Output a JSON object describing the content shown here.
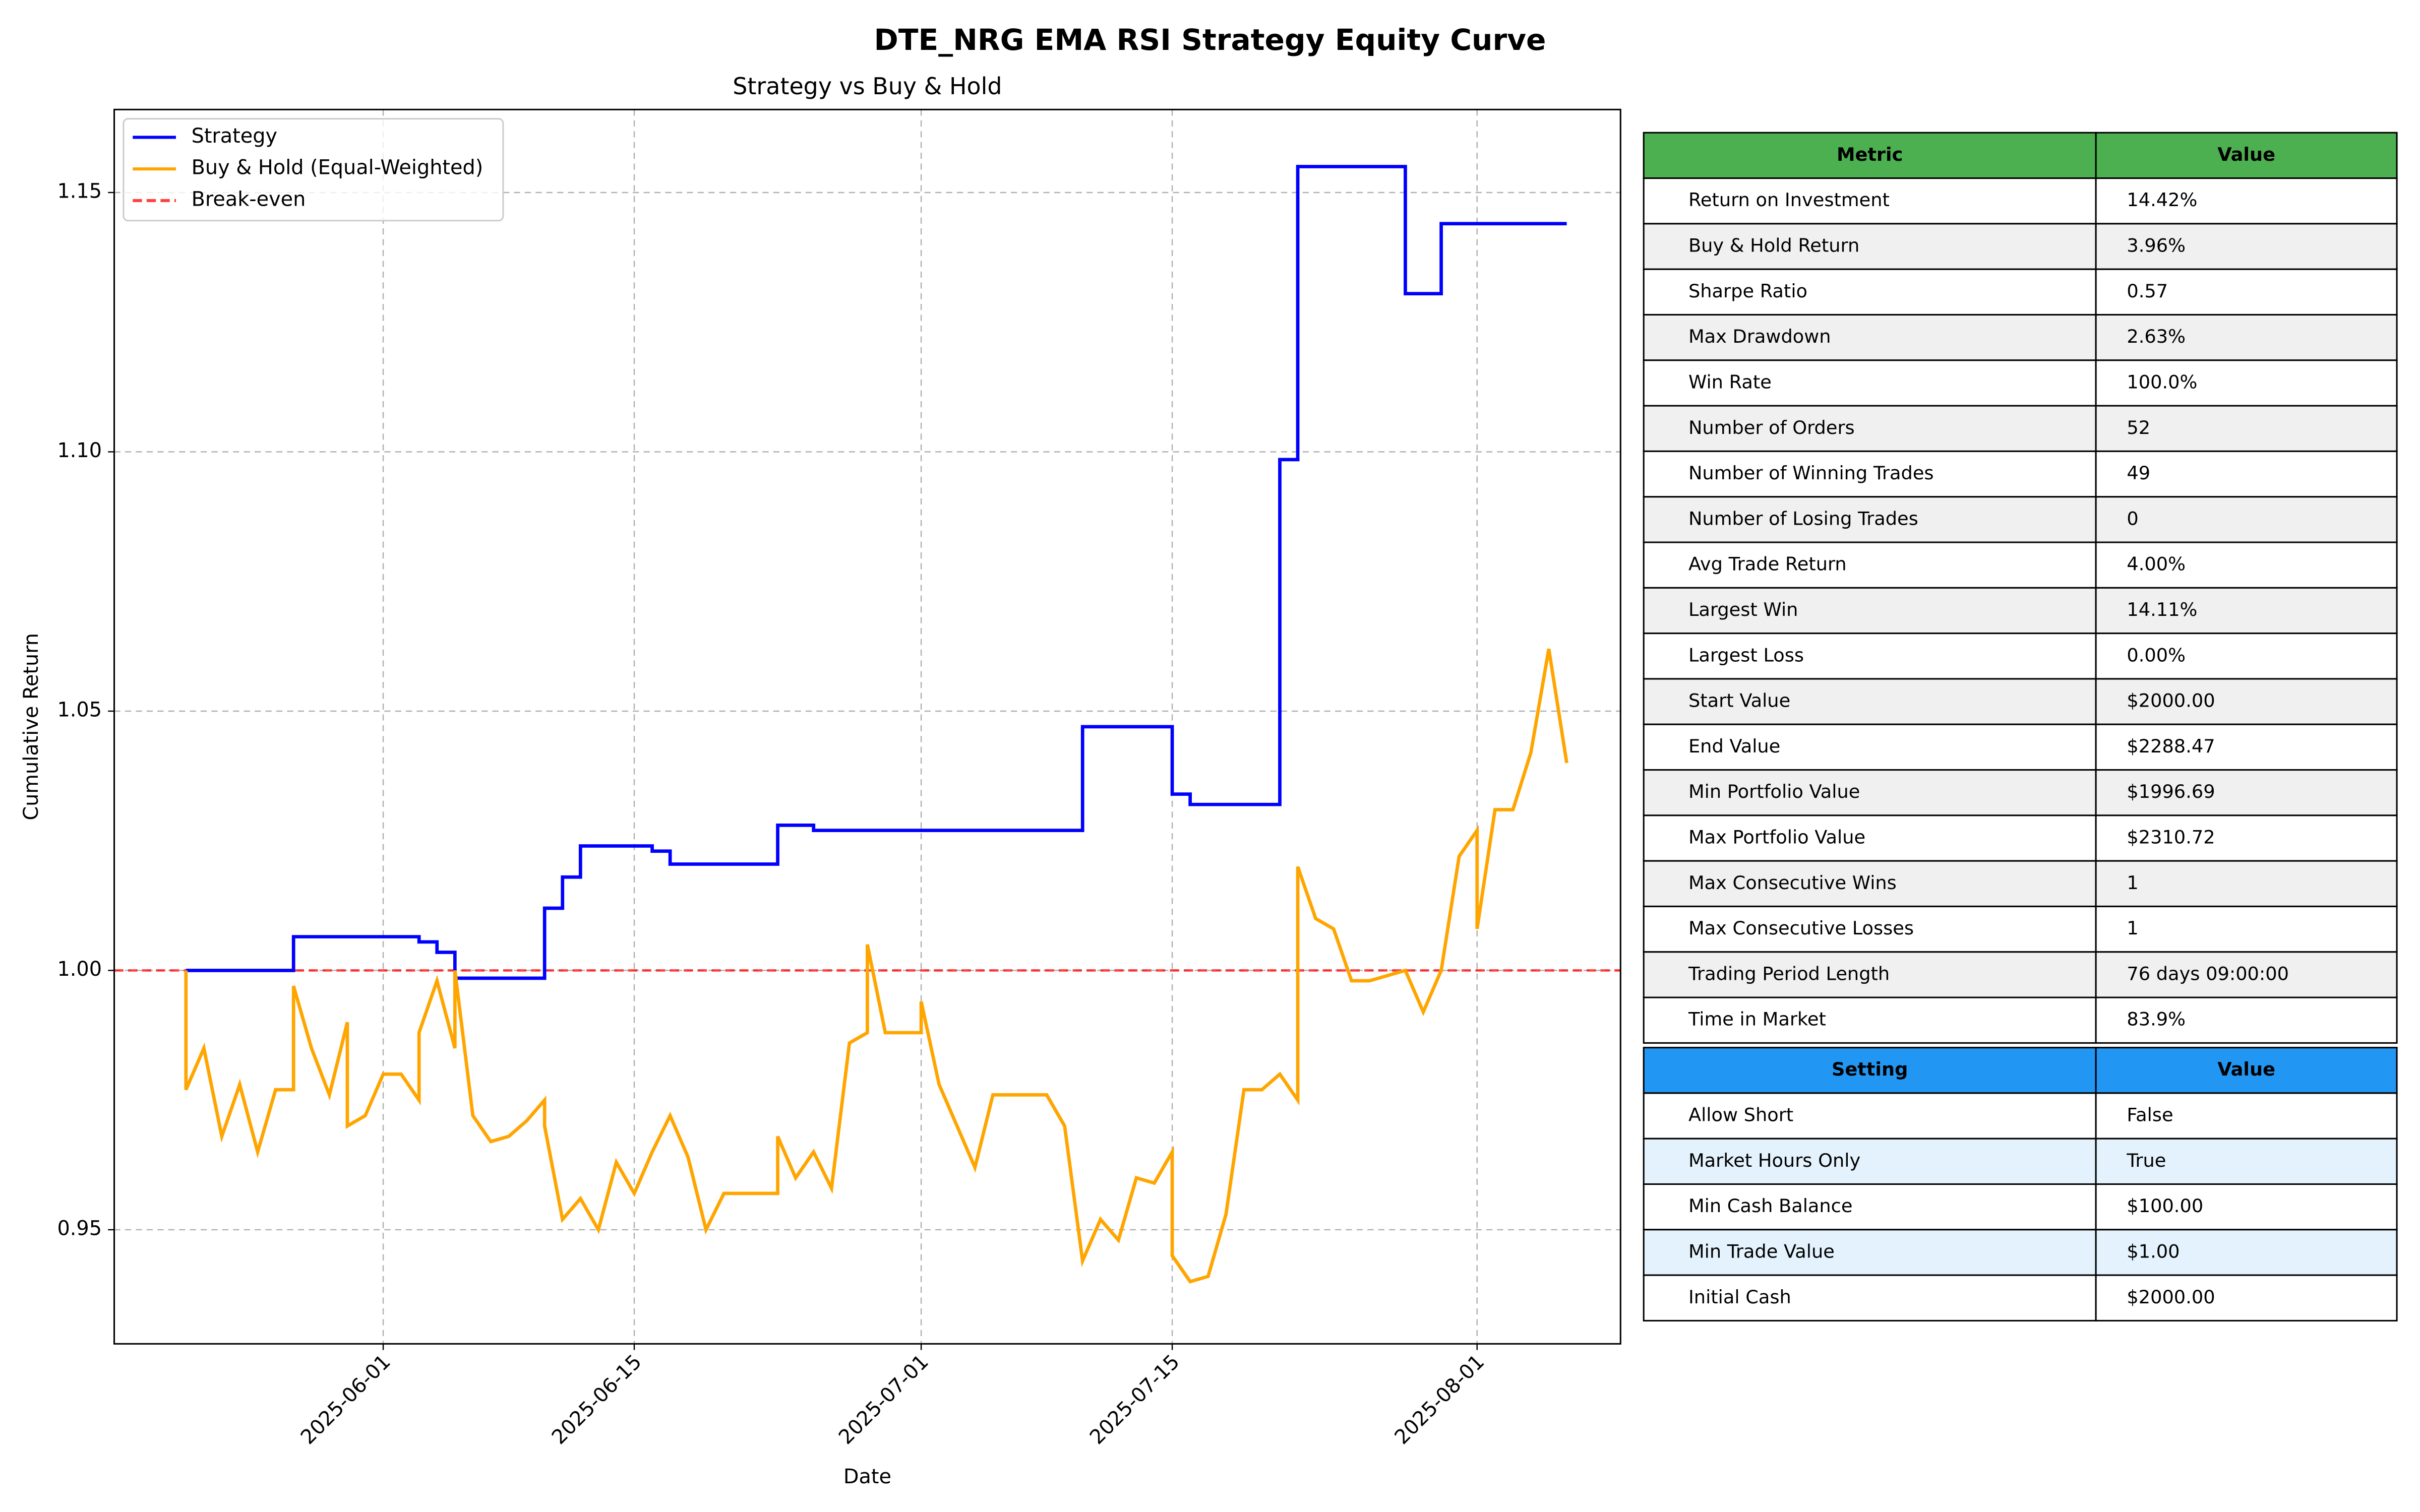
{
  "chart_data": {
    "type": "line",
    "title": "DTE_NRG EMA RSI Strategy Equity Curve",
    "subtitle": "Strategy vs Buy & Hold",
    "xlabel": "Date",
    "ylabel": "Cumulative Return",
    "xlim": [
      "2025-05-17",
      "2025-08-09"
    ],
    "xticks": [
      "2025-06-01",
      "2025-06-15",
      "2025-07-01",
      "2025-07-15",
      "2025-08-01"
    ],
    "ylim": [
      0.928,
      1.166
    ],
    "yticks": [
      0.95,
      {
        "value": 1.0,
        "label": "1.00"
      },
      1.05,
      {
        "value": 1.1,
        "label": "1.10"
      },
      1.15
    ],
    "grid": true,
    "legend": "upper left",
    "series": [
      {
        "name": "Strategy",
        "color": "#0000ff",
        "x": [
          "2025-05-21",
          "2025-05-27",
          "2025-05-27",
          "2025-06-03",
          "2025-06-03",
          "2025-06-04",
          "2025-06-04",
          "2025-06-05",
          "2025-06-05",
          "2025-06-10",
          "2025-06-10",
          "2025-06-11",
          "2025-06-11",
          "2025-06-12",
          "2025-06-12",
          "2025-06-16",
          "2025-06-16",
          "2025-06-17",
          "2025-06-17",
          "2025-06-23",
          "2025-06-23",
          "2025-06-25",
          "2025-06-25",
          "2025-07-10",
          "2025-07-10",
          "2025-07-15",
          "2025-07-15",
          "2025-07-16",
          "2025-07-16",
          "2025-07-21",
          "2025-07-21",
          "2025-07-22",
          "2025-07-22",
          "2025-07-28",
          "2025-07-28",
          "2025-07-30",
          "2025-07-30",
          "2025-08-06"
        ],
        "values": [
          1.0,
          1.0,
          1.0065,
          1.0065,
          1.0055,
          1.0055,
          1.0035,
          1.0035,
          0.9985,
          0.9985,
          1.012,
          1.012,
          1.018,
          1.018,
          1.024,
          1.024,
          1.023,
          1.023,
          1.0205,
          1.0205,
          1.028,
          1.028,
          1.027,
          1.027,
          1.047,
          1.047,
          1.034,
          1.034,
          1.032,
          1.032,
          1.0985,
          1.0985,
          1.155,
          1.155,
          1.1305,
          1.1305,
          1.144,
          1.144
        ]
      },
      {
        "name": "Buy & Hold (Equal-Weighted)",
        "color": "#ffa500",
        "x": [
          "2025-05-21",
          "2025-05-21",
          "2025-05-22",
          "2025-05-23",
          "2025-05-24",
          "2025-05-25",
          "2025-05-26",
          "2025-05-27",
          "2025-05-27",
          "2025-05-28",
          "2025-05-29",
          "2025-05-30",
          "2025-05-30",
          "2025-05-31",
          "2025-06-01",
          "2025-06-02",
          "2025-06-03",
          "2025-06-03",
          "2025-06-04",
          "2025-06-05",
          "2025-06-05",
          "2025-06-06",
          "2025-06-07",
          "2025-06-08",
          "2025-06-09",
          "2025-06-10",
          "2025-06-10",
          "2025-06-11",
          "2025-06-12",
          "2025-06-13",
          "2025-06-14",
          "2025-06-15",
          "2025-06-16",
          "2025-06-17",
          "2025-06-18",
          "2025-06-19",
          "2025-06-20",
          "2025-06-23",
          "2025-06-23",
          "2025-06-24",
          "2025-06-25",
          "2025-06-26",
          "2025-06-27",
          "2025-06-28",
          "2025-06-28",
          "2025-06-29",
          "2025-07-01",
          "2025-07-01",
          "2025-07-02",
          "2025-07-03",
          "2025-07-04",
          "2025-07-05",
          "2025-07-08",
          "2025-07-09",
          "2025-07-10",
          "2025-07-11",
          "2025-07-12",
          "2025-07-13",
          "2025-07-14",
          "2025-07-15",
          "2025-07-15",
          "2025-07-16",
          "2025-07-17",
          "2025-07-18",
          "2025-07-19",
          "2025-07-20",
          "2025-07-21",
          "2025-07-22",
          "2025-07-22",
          "2025-07-23",
          "2025-07-24",
          "2025-07-25",
          "2025-07-26",
          "2025-07-28",
          "2025-07-29",
          "2025-07-30",
          "2025-07-31",
          "2025-08-01",
          "2025-08-01",
          "2025-08-02",
          "2025-08-03",
          "2025-08-04",
          "2025-08-05",
          "2025-08-06"
        ],
        "values": [
          1.0,
          0.977,
          0.985,
          0.968,
          0.978,
          0.965,
          0.977,
          0.977,
          0.997,
          0.985,
          0.976,
          0.99,
          0.97,
          0.972,
          0.98,
          0.98,
          0.975,
          0.988,
          0.998,
          0.985,
          1.0,
          0.972,
          0.967,
          0.968,
          0.971,
          0.975,
          0.97,
          0.952,
          0.956,
          0.95,
          0.963,
          0.957,
          0.965,
          0.972,
          0.964,
          0.95,
          0.957,
          0.957,
          0.968,
          0.96,
          0.965,
          0.958,
          0.986,
          0.988,
          1.005,
          0.988,
          0.988,
          0.994,
          0.978,
          0.97,
          0.962,
          0.976,
          0.976,
          0.97,
          0.944,
          0.952,
          0.948,
          0.96,
          0.959,
          0.965,
          0.945,
          0.94,
          0.941,
          0.953,
          0.977,
          0.977,
          0.98,
          0.975,
          1.02,
          1.01,
          1.008,
          0.998,
          0.998,
          1.0,
          0.992,
          1.0,
          1.022,
          1.027,
          1.008,
          1.031,
          1.031,
          1.042,
          1.062,
          1.04
        ]
      }
    ],
    "hlines": [
      {
        "name": "Break-even",
        "value": 1.0,
        "color": "#ff0000"
      }
    ]
  },
  "tables": [
    {
      "header": [
        "Metric",
        "Value"
      ],
      "color": "#4caf50",
      "stripe": "#f0f0f0",
      "rows": [
        [
          "Return on Investment",
          "14.42%"
        ],
        [
          "Buy & Hold Return",
          "3.96%"
        ],
        [
          "Sharpe Ratio",
          "0.57"
        ],
        [
          "Max Drawdown",
          "2.63%"
        ],
        [
          "Win Rate",
          "100.0%"
        ],
        [
          "Number of Orders",
          "52"
        ],
        [
          "Number of Winning Trades",
          "49"
        ],
        [
          "Number of Losing Trades",
          "0"
        ],
        [
          "Avg Trade Return",
          "4.00%"
        ],
        [
          "Largest Win",
          "14.11%"
        ],
        [
          "Largest Loss",
          "0.00%"
        ],
        [
          "Start Value",
          "$2000.00"
        ],
        [
          "End Value",
          "$2288.47"
        ],
        [
          "Min Portfolio Value",
          "$1996.69"
        ],
        [
          "Max Portfolio Value",
          "$2310.72"
        ],
        [
          "Max Consecutive Wins",
          "1"
        ],
        [
          "Max Consecutive Losses",
          "1"
        ],
        [
          "Trading Period Length",
          "76 days 09:00:00"
        ],
        [
          "Time in Market",
          "83.9%"
        ]
      ]
    },
    {
      "header": [
        "Setting",
        "Value"
      ],
      "color": "#2196f3",
      "stripe": "#e3f2fd",
      "rows": [
        [
          "Allow Short",
          "False"
        ],
        [
          "Market Hours Only",
          "True"
        ],
        [
          "Min Cash Balance",
          "$100.00"
        ],
        [
          "Min Trade Value",
          "$1.00"
        ],
        [
          "Initial Cash",
          "$2000.00"
        ]
      ]
    }
  ]
}
